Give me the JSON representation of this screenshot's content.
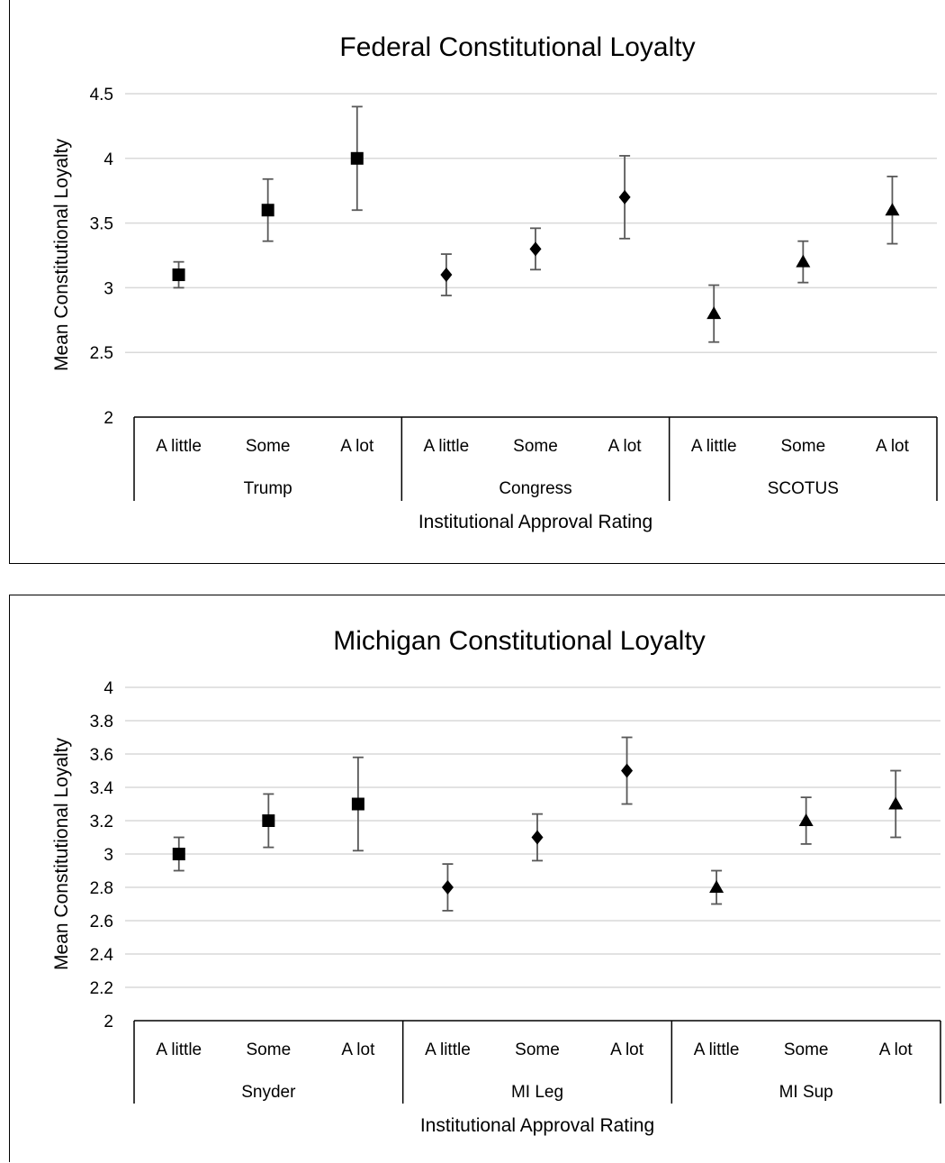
{
  "chart_data": [
    {
      "type": "scatter",
      "title": "Federal Constitutional Loyalty",
      "xlabel": "Institutional Approval Rating",
      "ylabel": "Mean Constitutional Loyalty",
      "ylim": [
        2,
        4.5
      ],
      "y_ticks": [
        "2",
        "2.5",
        "3",
        "3.5",
        "4",
        "4.5"
      ],
      "grid": true,
      "legend": "none",
      "groups": [
        {
          "name": "Trump",
          "marker": "square",
          "categories": [
            "A little",
            "Some",
            "A lot"
          ],
          "values": [
            3.1,
            3.6,
            4.0
          ],
          "error_low": [
            3.0,
            3.36,
            3.6
          ],
          "error_high": [
            3.2,
            3.84,
            4.4
          ]
        },
        {
          "name": "Congress",
          "marker": "diamond",
          "categories": [
            "A little",
            "Some",
            "A lot"
          ],
          "values": [
            3.1,
            3.3,
            3.7
          ],
          "error_low": [
            2.94,
            3.14,
            3.38
          ],
          "error_high": [
            3.26,
            3.46,
            4.02
          ]
        },
        {
          "name": "SCOTUS",
          "marker": "triangle",
          "categories": [
            "A little",
            "Some",
            "A lot"
          ],
          "values": [
            2.8,
            3.2,
            3.6
          ],
          "error_low": [
            2.58,
            3.04,
            3.34
          ],
          "error_high": [
            3.02,
            3.36,
            3.86
          ]
        }
      ]
    },
    {
      "type": "scatter",
      "title": "Michigan Constitutional Loyalty",
      "xlabel": "Institutional Approval Rating",
      "ylabel": "Mean Constitutional Loyalty",
      "ylim": [
        2,
        4
      ],
      "y_ticks": [
        "2",
        "2.2",
        "2.4",
        "2.6",
        "2.8",
        "3",
        "3.2",
        "3.4",
        "3.6",
        "3.8",
        "4"
      ],
      "grid": true,
      "legend": "none",
      "groups": [
        {
          "name": "Snyder",
          "marker": "square",
          "categories": [
            "A little",
            "Some",
            "A lot"
          ],
          "values": [
            3.0,
            3.2,
            3.3
          ],
          "error_low": [
            2.9,
            3.04,
            3.02
          ],
          "error_high": [
            3.1,
            3.36,
            3.58
          ]
        },
        {
          "name": "MI Leg",
          "marker": "diamond",
          "categories": [
            "A little",
            "Some",
            "A lot"
          ],
          "values": [
            2.8,
            3.1,
            3.5
          ],
          "error_low": [
            2.66,
            2.96,
            3.3
          ],
          "error_high": [
            2.94,
            3.24,
            3.7
          ]
        },
        {
          "name": "MI Sup",
          "marker": "triangle",
          "categories": [
            "A little",
            "Some",
            "A lot"
          ],
          "values": [
            2.8,
            3.2,
            3.3
          ],
          "error_low": [
            2.7,
            3.06,
            3.1
          ],
          "error_high": [
            2.9,
            3.34,
            3.5
          ]
        }
      ]
    }
  ]
}
